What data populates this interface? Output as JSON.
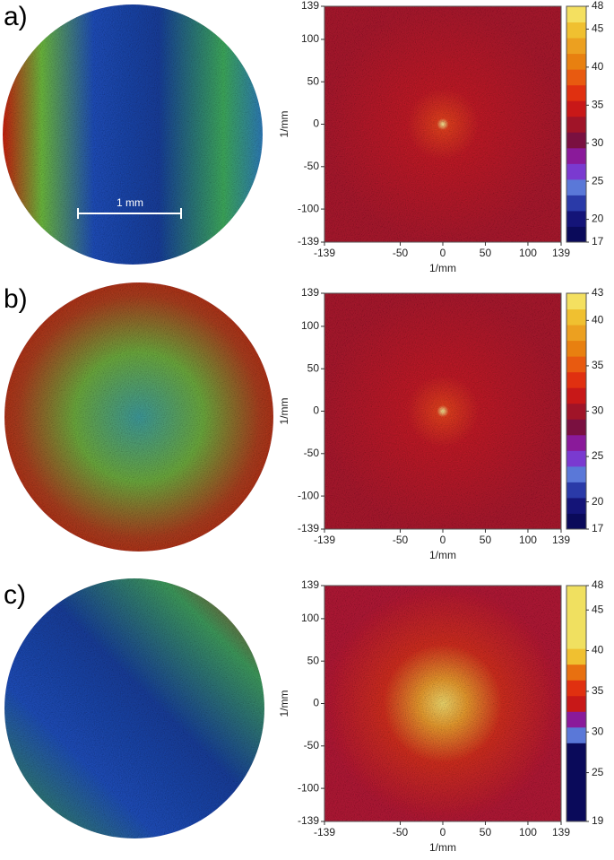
{
  "chart_data": [
    {
      "type": "heatmap",
      "panel_label": "a)",
      "scale_bar_label": "1 mm",
      "xlabel": "1/mm",
      "ylabel": "1/mm",
      "xlim": [
        -139,
        139
      ],
      "ylim": [
        -139,
        139
      ],
      "xticks": [
        -139,
        -50,
        0,
        50,
        100,
        139
      ],
      "yticks": [
        -139,
        -100,
        -50,
        0,
        50,
        100,
        139
      ],
      "clim": [
        17,
        48
      ],
      "cticks": [
        17,
        20,
        25,
        30,
        35,
        40,
        45,
        48
      ],
      "colors": [
        "#0a0a5a",
        "#141478",
        "#2a3aa8",
        "#5a78d8",
        "#7a3ad0",
        "#8a1a9a",
        "#7a1040",
        "#a01428",
        "#c81818",
        "#e03010",
        "#e85a10",
        "#e88010",
        "#eca020",
        "#f0c030",
        "#f4e060"
      ]
    },
    {
      "type": "heatmap",
      "panel_label": "b)",
      "xlabel": "1/mm",
      "ylabel": "1/mm",
      "xlim": [
        -139,
        139
      ],
      "ylim": [
        -139,
        139
      ],
      "xticks": [
        -139,
        -50,
        0,
        50,
        100,
        139
      ],
      "yticks": [
        -139,
        -100,
        -50,
        0,
        50,
        100,
        139
      ],
      "clim": [
        17,
        43
      ],
      "cticks": [
        17,
        20,
        25,
        30,
        35,
        40,
        43
      ],
      "colors": [
        "#0a0a5a",
        "#141478",
        "#2a3aa8",
        "#5a78d8",
        "#7a3ad0",
        "#8a1a9a",
        "#7a1040",
        "#a01428",
        "#c81818",
        "#e03010",
        "#e85a10",
        "#e88010",
        "#eca020",
        "#f0c030",
        "#f4e060"
      ]
    },
    {
      "type": "heatmap",
      "panel_label": "c)",
      "xlabel": "1/mm",
      "ylabel": "1/mm",
      "xlim": [
        -139,
        139
      ],
      "ylim": [
        -139,
        139
      ],
      "xticks": [
        -139,
        -50,
        0,
        50,
        100,
        139
      ],
      "yticks": [
        -139,
        -100,
        -50,
        0,
        50,
        100,
        139
      ],
      "clim": [
        19,
        48
      ],
      "cticks": [
        19,
        25,
        30,
        35,
        40,
        45,
        48
      ],
      "colors": [
        "#0a0a5a",
        "#0a0a5a",
        "#0a0a5a",
        "#0a0a5a",
        "#0a0a5a",
        "#5a78d8",
        "#8a1a9a",
        "#c81818",
        "#e03010",
        "#e87010",
        "#f0c030",
        "#f0e060",
        "#f0e060",
        "#f0e060",
        "#f0e060"
      ]
    }
  ]
}
